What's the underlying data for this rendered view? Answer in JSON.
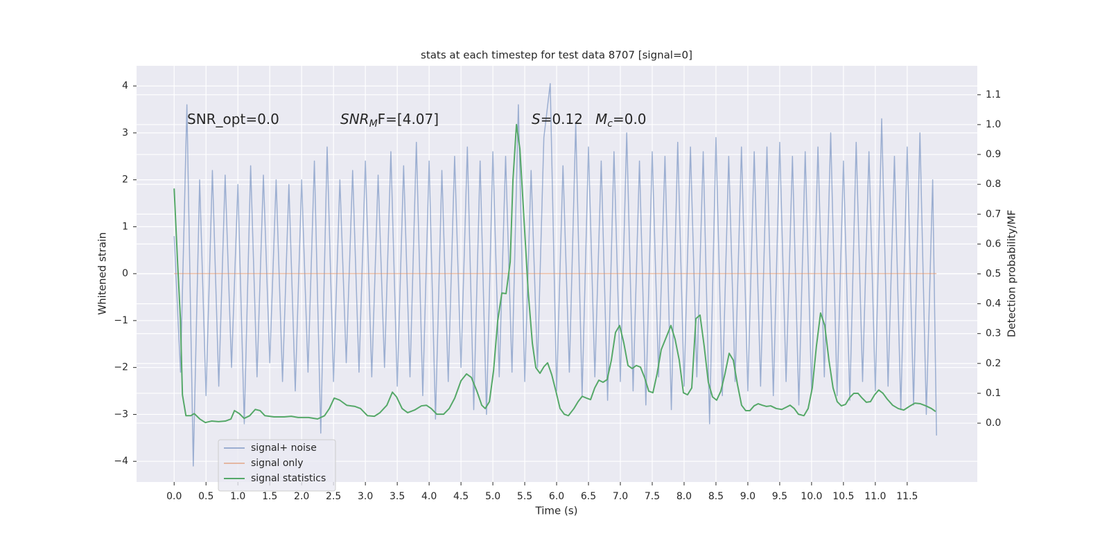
{
  "chart_data": {
    "type": "line",
    "title": "stats at each timestep for test data 8707 [signal=0]",
    "xlabel": "Time (s)",
    "ylabel": "Whitened strain",
    "y2label": "Detection probability/MF",
    "grid": true,
    "legend_loc": "lower left",
    "xlim": [
      -0.59,
      12.6
    ],
    "ylim": [
      -4.44,
      4.43
    ],
    "y2lim": [
      -0.197,
      1.197
    ],
    "xticks": [
      {
        "value": 0,
        "label": "0.0"
      },
      0.5,
      {
        "value": 1,
        "label": "1.0"
      },
      1.5,
      {
        "value": 2,
        "label": "2.0"
      },
      2.5,
      {
        "value": 3,
        "label": "3.0"
      },
      3.5,
      {
        "value": 4,
        "label": "4.0"
      },
      4.5,
      {
        "value": 5,
        "label": "5.0"
      },
      5.5,
      {
        "value": 6,
        "label": "6.0"
      },
      6.5,
      {
        "value": 7,
        "label": "7.0"
      },
      7.5,
      {
        "value": 8,
        "label": "8.0"
      },
      8.5,
      {
        "value": 9,
        "label": "9.0"
      },
      9.5,
      {
        "value": 10,
        "label": "10.0"
      },
      10.5,
      {
        "value": 11,
        "label": "11.0"
      },
      11.5
    ],
    "yticks": [
      {
        "value": -4,
        "label": "−4"
      },
      {
        "value": -3,
        "label": "−3"
      },
      {
        "value": -2,
        "label": "−2"
      },
      {
        "value": -1,
        "label": "−1"
      },
      0,
      1,
      2,
      3,
      4
    ],
    "y2ticks": [
      {
        "value": 0,
        "label": "0.0"
      },
      0.1,
      0.2,
      0.3,
      0.4,
      0.5,
      0.6,
      0.7,
      0.8,
      0.9,
      {
        "value": 1,
        "label": "1.0"
      },
      1.1
    ],
    "annotations": [
      [
        {
          "text": "SNR_opt=0.0"
        }
      ],
      [
        {
          "text": "SNR",
          "italic": true
        },
        {
          "text": "M",
          "italic": true,
          "sub": true
        },
        {
          "text": "F=[4.07]"
        }
      ],
      [
        {
          "text": "S",
          "italic": true
        },
        {
          "text": "=0.12"
        }
      ],
      [
        {
          "text": "M",
          "italic": true
        },
        {
          "text": "c",
          "italic": true,
          "sub": true
        },
        {
          "text": "=0.0"
        }
      ]
    ],
    "series": [
      {
        "name": "signal+ noise",
        "color": "#4c72b0",
        "opacity": 0.5,
        "x": [
          0.0,
          0.1,
          0.2,
          0.3,
          0.4,
          0.5,
          0.6,
          0.7,
          0.8,
          0.9,
          1.0,
          1.1,
          1.2,
          1.3,
          1.4,
          1.5,
          1.6,
          1.7,
          1.8,
          1.9,
          2.0,
          2.1,
          2.2,
          2.3,
          2.4,
          2.5,
          2.6,
          2.7,
          2.8,
          2.9,
          3.0,
          3.1,
          3.2,
          3.3,
          3.4,
          3.5,
          3.6,
          3.7,
          3.8,
          3.9,
          4.0,
          4.1,
          4.2,
          4.3,
          4.4,
          4.5,
          4.6,
          4.7,
          4.8,
          4.9,
          5.0,
          5.1,
          5.2,
          5.3,
          5.4,
          5.5,
          5.6,
          5.7,
          5.8,
          5.9,
          6.0,
          6.1,
          6.2,
          6.3,
          6.4,
          6.5,
          6.6,
          6.7,
          6.8,
          6.9,
          7.0,
          7.1,
          7.2,
          7.3,
          7.4,
          7.5,
          7.6,
          7.7,
          7.8,
          7.9,
          8.0,
          8.1,
          8.2,
          8.3,
          8.4,
          8.5,
          8.6,
          8.7,
          8.8,
          8.9,
          9.0,
          9.1,
          9.2,
          9.3,
          9.4,
          9.5,
          9.6,
          9.7,
          9.8,
          9.9,
          10.0,
          10.1,
          10.2,
          10.3,
          10.4,
          10.5,
          10.6,
          10.7,
          10.8,
          10.9,
          11.0,
          11.1,
          11.2,
          11.3,
          11.4,
          11.5,
          11.6,
          11.7,
          11.8,
          11.9,
          11.96
        ],
        "values": [
          0.8,
          -2.1,
          3.6,
          -4.1,
          2.0,
          -2.6,
          2.2,
          -2.4,
          2.1,
          -2.0,
          1.9,
          -3.2,
          2.3,
          -2.2,
          2.1,
          -1.9,
          2.0,
          -2.3,
          1.9,
          -2.5,
          2.0,
          -2.1,
          2.4,
          -3.4,
          2.7,
          -2.3,
          2.0,
          -1.9,
          2.2,
          -2.1,
          2.4,
          -2.2,
          2.1,
          -2.0,
          2.6,
          -2.4,
          2.3,
          -2.2,
          2.8,
          -2.6,
          2.4,
          -3.1,
          2.2,
          -2.3,
          2.5,
          -2.0,
          2.7,
          -2.9,
          2.4,
          -3.0,
          2.6,
          -2.2,
          2.5,
          -2.1,
          3.6,
          -2.3,
          2.2,
          -2.0,
          2.9,
          4.05,
          -2.5,
          2.3,
          -2.1,
          3.2,
          -2.6,
          2.7,
          -2.2,
          2.4,
          -2.7,
          2.6,
          -2.3,
          3.0,
          -2.5,
          2.4,
          -2.8,
          2.6,
          -2.2,
          2.5,
          -2.9,
          2.8,
          -2.4,
          2.7,
          -2.2,
          2.6,
          -3.2,
          2.9,
          -2.6,
          2.5,
          -2.3,
          2.7,
          -2.5,
          2.6,
          -2.4,
          2.7,
          -2.6,
          2.8,
          -2.3,
          2.5,
          -2.8,
          2.6,
          -2.5,
          2.7,
          -2.2,
          3.0,
          -2.6,
          2.4,
          -2.7,
          2.8,
          -2.3,
          2.6,
          -2.5,
          3.3,
          -2.4,
          2.5,
          -2.9,
          2.7,
          -2.8,
          3.0,
          -3.0,
          2.0,
          -3.45
        ]
      },
      {
        "name": "signal only",
        "color": "#dd8452",
        "opacity": 0.5,
        "x": [
          0.0,
          11.96
        ],
        "values": [
          0,
          0
        ]
      },
      {
        "name": "signal statistics",
        "color": "#55a868",
        "axis": "y2",
        "x": [
          0,
          0.054,
          0.098,
          0.13,
          0.185,
          0.261,
          0.315,
          0.402,
          0.489,
          0.587,
          0.696,
          0.804,
          0.891,
          0.946,
          1.022,
          1.098,
          1.185,
          1.272,
          1.348,
          1.424,
          1.565,
          1.728,
          1.837,
          1.946,
          2.109,
          2.25,
          2.359,
          2.435,
          2.511,
          2.598,
          2.707,
          2.837,
          2.924,
          3.033,
          3.141,
          3.228,
          3.337,
          3.424,
          3.489,
          3.576,
          3.663,
          3.772,
          3.88,
          3.957,
          4.033,
          4.12,
          4.228,
          4.315,
          4.402,
          4.5,
          4.587,
          4.663,
          4.75,
          4.826,
          4.88,
          4.946,
          5.011,
          5.076,
          5.141,
          5.207,
          5.272,
          5.315,
          5.37,
          5.424,
          5.478,
          5.554,
          5.62,
          5.674,
          5.739,
          5.804,
          5.859,
          5.924,
          5.989,
          6.054,
          6.12,
          6.185,
          6.272,
          6.337,
          6.402,
          6.467,
          6.533,
          6.598,
          6.663,
          6.728,
          6.793,
          6.859,
          6.924,
          6.989,
          7.054,
          7.12,
          7.185,
          7.25,
          7.315,
          7.38,
          7.446,
          7.511,
          7.576,
          7.641,
          7.728,
          7.793,
          7.859,
          7.924,
          7.989,
          8.054,
          8.12,
          8.185,
          8.25,
          8.315,
          8.38,
          8.446,
          8.511,
          8.576,
          8.641,
          8.707,
          8.772,
          8.837,
          8.902,
          8.967,
          9.033,
          9.098,
          9.163,
          9.228,
          9.293,
          9.359,
          9.446,
          9.533,
          9.598,
          9.663,
          9.728,
          9.793,
          9.88,
          9.946,
          10.011,
          10.076,
          10.141,
          10.207,
          10.272,
          10.337,
          10.402,
          10.467,
          10.533,
          10.598,
          10.663,
          10.728,
          10.793,
          10.859,
          10.924,
          10.989,
          11.054,
          11.12,
          11.185,
          11.272,
          11.359,
          11.446,
          11.533,
          11.62,
          11.707,
          11.793,
          11.88,
          11.946
        ],
        "values": [
          0.786,
          0.537,
          0.35,
          0.095,
          0.025,
          0.025,
          0.032,
          0.014,
          0.002,
          0.007,
          0.005,
          0.007,
          0.014,
          0.042,
          0.032,
          0.016,
          0.025,
          0.046,
          0.042,
          0.025,
          0.021,
          0.021,
          0.023,
          0.019,
          0.019,
          0.014,
          0.025,
          0.049,
          0.084,
          0.077,
          0.06,
          0.056,
          0.049,
          0.025,
          0.023,
          0.035,
          0.06,
          0.104,
          0.088,
          0.049,
          0.035,
          0.044,
          0.058,
          0.06,
          0.049,
          0.03,
          0.03,
          0.049,
          0.084,
          0.142,
          0.165,
          0.153,
          0.107,
          0.06,
          0.049,
          0.072,
          0.176,
          0.343,
          0.436,
          0.434,
          0.54,
          0.814,
          1.0,
          0.919,
          0.722,
          0.441,
          0.267,
          0.186,
          0.167,
          0.19,
          0.202,
          0.162,
          0.107,
          0.049,
          0.03,
          0.025,
          0.049,
          0.072,
          0.09,
          0.084,
          0.079,
          0.118,
          0.144,
          0.137,
          0.146,
          0.211,
          0.304,
          0.327,
          0.269,
          0.193,
          0.183,
          0.193,
          0.188,
          0.153,
          0.107,
          0.102,
          0.165,
          0.246,
          0.292,
          0.327,
          0.281,
          0.211,
          0.102,
          0.095,
          0.118,
          0.35,
          0.362,
          0.258,
          0.137,
          0.088,
          0.077,
          0.107,
          0.165,
          0.234,
          0.211,
          0.13,
          0.06,
          0.042,
          0.042,
          0.058,
          0.065,
          0.06,
          0.056,
          0.058,
          0.049,
          0.046,
          0.053,
          0.06,
          0.049,
          0.03,
          0.025,
          0.049,
          0.118,
          0.258,
          0.369,
          0.327,
          0.211,
          0.118,
          0.072,
          0.058,
          0.063,
          0.086,
          0.1,
          0.1,
          0.084,
          0.07,
          0.072,
          0.095,
          0.111,
          0.1,
          0.081,
          0.06,
          0.049,
          0.044,
          0.056,
          0.067,
          0.065,
          0.058,
          0.049,
          0.039
        ]
      }
    ]
  }
}
